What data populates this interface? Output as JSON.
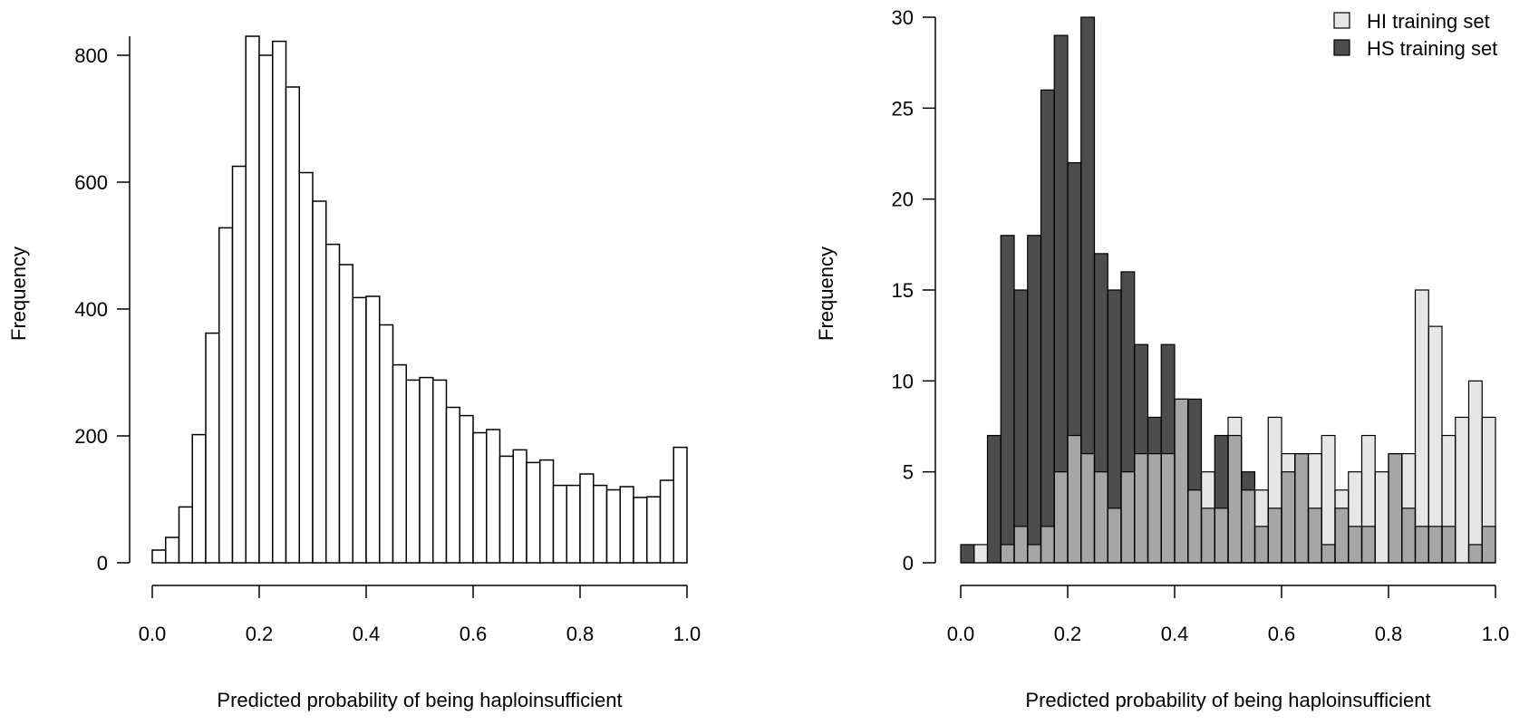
{
  "chart_data": [
    {
      "type": "bar",
      "subtype": "histogram",
      "xlabel": "Predicted probability of being haploinsufficient",
      "ylabel": "Frequency",
      "xlim": [
        0.0,
        1.0
      ],
      "ylim": [
        0,
        830
      ],
      "xticks": [
        "0.0",
        "0.2",
        "0.4",
        "0.6",
        "0.8",
        "1.0"
      ],
      "yticks": [
        "0",
        "200",
        "400",
        "600",
        "800"
      ],
      "bin_width": 0.025,
      "bin_starts": [
        0.0,
        0.025,
        0.05,
        0.075,
        0.1,
        0.125,
        0.15,
        0.175,
        0.2,
        0.225,
        0.25,
        0.275,
        0.3,
        0.325,
        0.35,
        0.375,
        0.4,
        0.425,
        0.45,
        0.475,
        0.5,
        0.525,
        0.55,
        0.575,
        0.6,
        0.625,
        0.65,
        0.675,
        0.7,
        0.725,
        0.75,
        0.775,
        0.8,
        0.825,
        0.85,
        0.875,
        0.9,
        0.925,
        0.95,
        0.975
      ],
      "values": [
        20,
        40,
        88,
        202,
        362,
        528,
        625,
        830,
        800,
        822,
        750,
        615,
        570,
        502,
        470,
        418,
        420,
        375,
        312,
        288,
        292,
        288,
        245,
        232,
        205,
        210,
        168,
        178,
        158,
        162,
        122,
        122,
        140,
        122,
        115,
        120,
        103,
        104,
        130,
        182
      ],
      "bar_fill": "#ffffff",
      "bar_stroke": "#000000"
    },
    {
      "type": "bar",
      "subtype": "overlaid-histogram",
      "xlabel": "Predicted probability of being haploinsufficient",
      "ylabel": "Frequency",
      "xlim": [
        0.0,
        1.0
      ],
      "ylim": [
        0,
        30
      ],
      "xticks": [
        "0.0",
        "0.2",
        "0.4",
        "0.6",
        "0.8",
        "1.0"
      ],
      "yticks": [
        "0",
        "5",
        "10",
        "15",
        "20",
        "25",
        "30"
      ],
      "bin_width": 0.025,
      "bin_starts": [
        0.0,
        0.025,
        0.05,
        0.075,
        0.1,
        0.125,
        0.15,
        0.175,
        0.2,
        0.225,
        0.25,
        0.275,
        0.3,
        0.325,
        0.35,
        0.375,
        0.4,
        0.425,
        0.45,
        0.475,
        0.5,
        0.525,
        0.55,
        0.575,
        0.6,
        0.625,
        0.65,
        0.675,
        0.7,
        0.725,
        0.75,
        0.775,
        0.8,
        0.825,
        0.85,
        0.875,
        0.9,
        0.925,
        0.95,
        0.975
      ],
      "series": [
        {
          "name": "HI training set",
          "color": "#e6e6e6",
          "values": [
            0,
            1,
            0,
            1,
            2,
            1,
            2,
            5,
            7,
            6,
            5,
            3,
            5,
            6,
            6,
            6,
            9,
            4,
            5,
            3,
            8,
            4,
            4,
            8,
            6,
            6,
            6,
            7,
            4,
            5,
            7,
            5,
            6,
            6,
            15,
            13,
            7,
            8,
            10,
            8
          ]
        },
        {
          "name": "HS training set",
          "color": "#4d4d4d",
          "values": [
            1,
            0,
            7,
            18,
            15,
            18,
            26,
            29,
            22,
            30,
            17,
            15,
            16,
            12,
            8,
            12,
            9,
            9,
            3,
            7,
            7,
            5,
            2,
            3,
            5,
            6,
            3,
            1,
            3,
            2,
            2,
            0,
            6,
            3,
            2,
            2,
            2,
            0,
            1,
            2
          ]
        }
      ],
      "overlap_color": "#a6a6a6",
      "legend": {
        "position": "top-right",
        "entries": [
          "HI training set",
          "HS training set"
        ]
      }
    }
  ]
}
